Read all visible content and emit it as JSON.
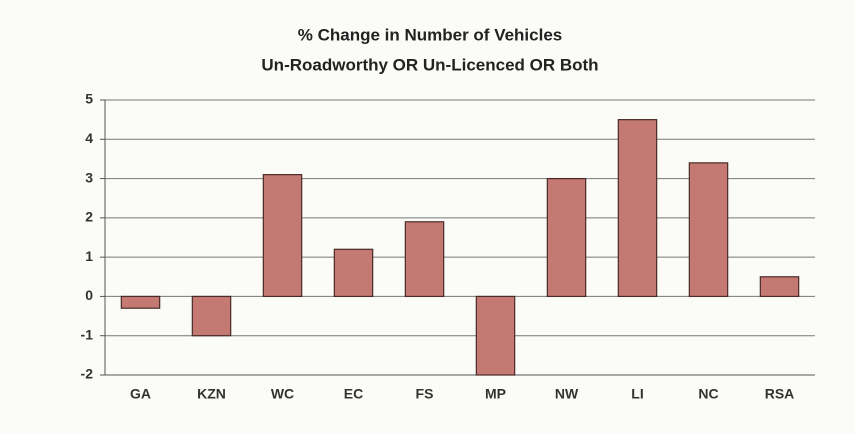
{
  "chart_data": {
    "type": "bar",
    "title": "% Change in Number of Vehicles",
    "subtitle": "Un-Roadworthy OR Un-Licenced OR Both",
    "categories": [
      "GA",
      "KZN",
      "WC",
      "EC",
      "FS",
      "MP",
      "NW",
      "LI",
      "NC",
      "RSA"
    ],
    "values": [
      -0.3,
      -1.0,
      3.1,
      1.2,
      1.9,
      -2.0,
      3.0,
      4.5,
      3.4,
      0.5
    ],
    "color": "#c47a72",
    "ylim": [
      -2,
      5
    ],
    "yticks": [
      -2,
      -1,
      0,
      1,
      2,
      3,
      4,
      5
    ],
    "grid": true
  }
}
